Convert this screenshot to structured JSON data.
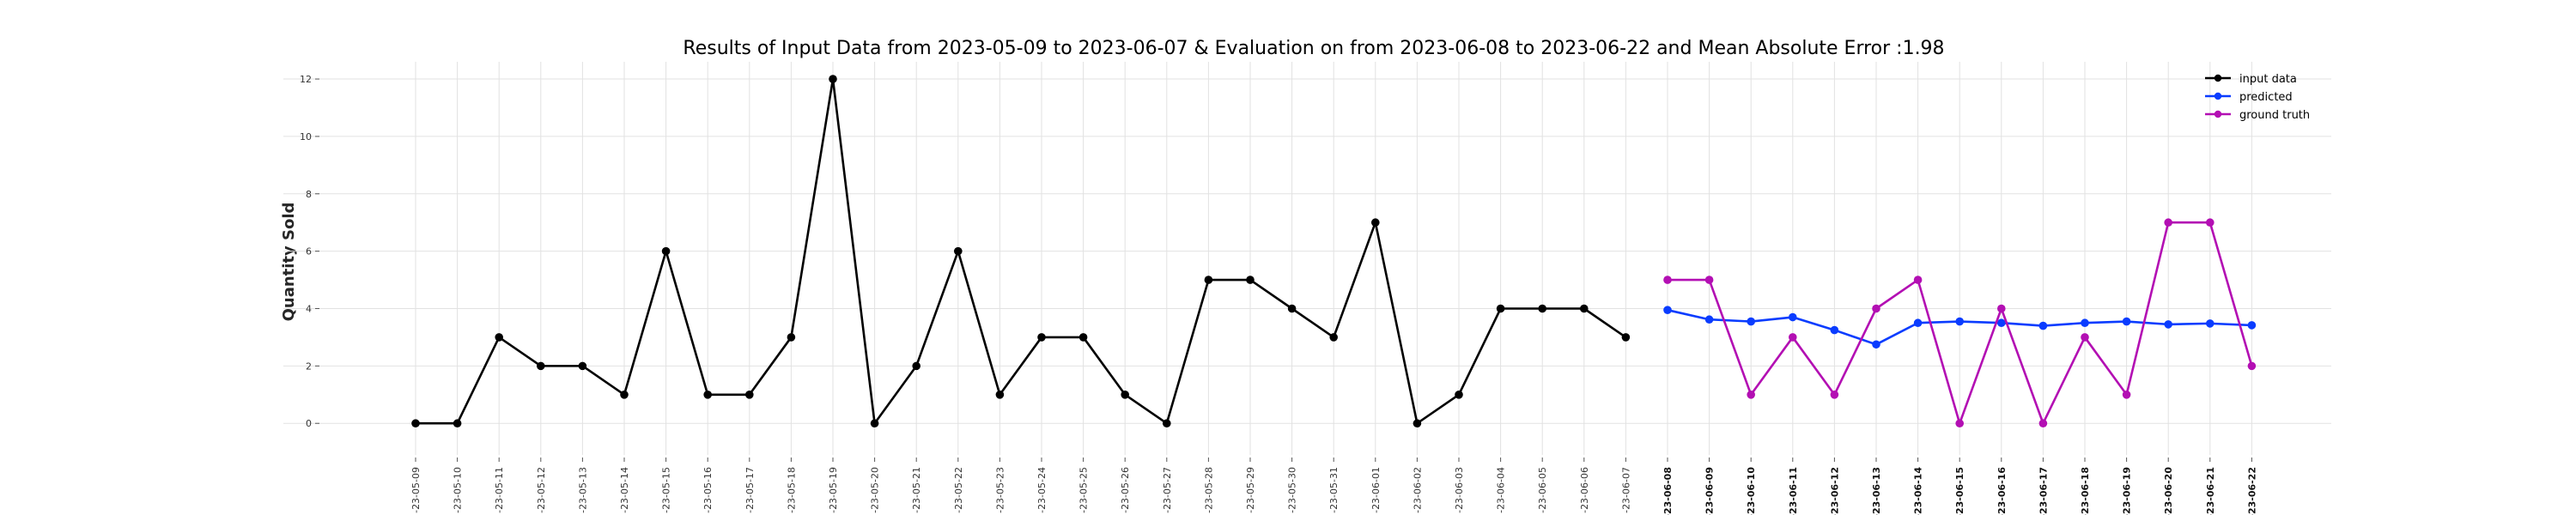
{
  "chart_data": {
    "type": "line",
    "title": "Results of Input Data from 2023-05-09 to 2023-06-07 & Evaluation on from 2023-06-08 to 2023-06-22 and Mean Absolute Error  :1.98",
    "xlabel": "",
    "ylabel": "Quantity Sold",
    "ylim": [
      -1.1,
      12.6
    ],
    "yticks": [
      0,
      2,
      4,
      6,
      8,
      10,
      12
    ],
    "grid": true,
    "legend_position": "top-right",
    "x": [
      "2023-05-09",
      "2023-05-10",
      "2023-05-11",
      "2023-05-12",
      "2023-05-13",
      "2023-05-14",
      "2023-05-15",
      "2023-05-16",
      "2023-05-17",
      "2023-05-18",
      "2023-05-19",
      "2023-05-20",
      "2023-05-21",
      "2023-05-22",
      "2023-05-23",
      "2023-05-24",
      "2023-05-25",
      "2023-05-26",
      "2023-05-27",
      "2023-05-28",
      "2023-05-29",
      "2023-05-30",
      "2023-05-31",
      "2023-06-01",
      "2023-06-02",
      "2023-06-03",
      "2023-06-04",
      "2023-06-05",
      "2023-06-06",
      "2023-06-07",
      "2023-06-08",
      "2023-06-09",
      "2023-06-10",
      "2023-06-11",
      "2023-06-12",
      "2023-06-13",
      "2023-06-14",
      "2023-06-15",
      "2023-06-16",
      "2023-06-17",
      "2023-06-18",
      "2023-06-19",
      "2023-06-20",
      "2023-06-21",
      "2023-06-22"
    ],
    "xtick_labels": [
      "-23-05-09",
      "-23-05-10",
      "-23-05-11",
      "-23-05-12",
      "-23-05-13",
      "-23-05-14",
      "-23-05-15",
      "-23-05-16",
      "-23-05-17",
      "-23-05-18",
      "-23-05-19",
      "-23-05-20",
      "-23-05-21",
      "-23-05-22",
      "-23-05-23",
      "-23-05-24",
      "-23-05-25",
      "-23-05-26",
      "-23-05-27",
      "-23-05-28",
      "-23-05-29",
      "-23-05-30",
      "-23-05-31",
      "-23-06-01",
      "-23-06-02",
      "-23-06-03",
      "-23-06-04",
      "-23-06-05",
      "-23-06-06",
      "-23-06-07",
      "-23-06-08",
      "-23-06-09",
      "-23-06-10",
      "-23-06-11",
      "-23-06-12",
      "-23-06-13",
      "-23-06-14",
      "-23-06-15",
      "-23-06-16",
      "-23-06-17",
      "-23-06-18",
      "-23-06-19",
      "-23-06-20",
      "-23-06-21",
      "-23-06-22"
    ],
    "series": [
      {
        "name": "input data",
        "color": "#000000",
        "x": [
          "2023-05-09",
          "2023-05-10",
          "2023-05-11",
          "2023-05-12",
          "2023-05-13",
          "2023-05-14",
          "2023-05-15",
          "2023-05-16",
          "2023-05-17",
          "2023-05-18",
          "2023-05-19",
          "2023-05-20",
          "2023-05-21",
          "2023-05-22",
          "2023-05-23",
          "2023-05-24",
          "2023-05-25",
          "2023-05-26",
          "2023-05-27",
          "2023-05-28",
          "2023-05-29",
          "2023-05-30",
          "2023-05-31",
          "2023-06-01",
          "2023-06-02",
          "2023-06-03",
          "2023-06-04",
          "2023-06-05",
          "2023-06-06",
          "2023-06-07"
        ],
        "values": [
          0,
          0,
          3,
          2,
          2,
          1,
          6,
          1,
          1,
          3,
          12,
          0,
          2,
          6,
          1,
          3,
          3,
          1,
          0,
          5,
          5,
          4,
          3,
          7,
          0,
          1,
          4,
          4,
          4,
          3
        ]
      },
      {
        "name": "predicted",
        "color": "#0a3cff",
        "x": [
          "2023-06-08",
          "2023-06-09",
          "2023-06-10",
          "2023-06-11",
          "2023-06-12",
          "2023-06-13",
          "2023-06-14",
          "2023-06-15",
          "2023-06-16",
          "2023-06-17",
          "2023-06-18",
          "2023-06-19",
          "2023-06-20",
          "2023-06-21",
          "2023-06-22"
        ],
        "values": [
          3.95,
          3.62,
          3.55,
          3.7,
          3.25,
          2.75,
          3.5,
          3.55,
          3.5,
          3.4,
          3.5,
          3.55,
          3.45,
          3.48,
          3.42
        ]
      },
      {
        "name": "ground truth",
        "color": "#b30fb3",
        "x": [
          "2023-06-08",
          "2023-06-09",
          "2023-06-10",
          "2023-06-11",
          "2023-06-12",
          "2023-06-13",
          "2023-06-14",
          "2023-06-15",
          "2023-06-16",
          "2023-06-17",
          "2023-06-18",
          "2023-06-19",
          "2023-06-20",
          "2023-06-21",
          "2023-06-22"
        ],
        "values": [
          5,
          5,
          1,
          3,
          1,
          4,
          5,
          0,
          4,
          0,
          3,
          1,
          7,
          7,
          2
        ]
      }
    ]
  }
}
